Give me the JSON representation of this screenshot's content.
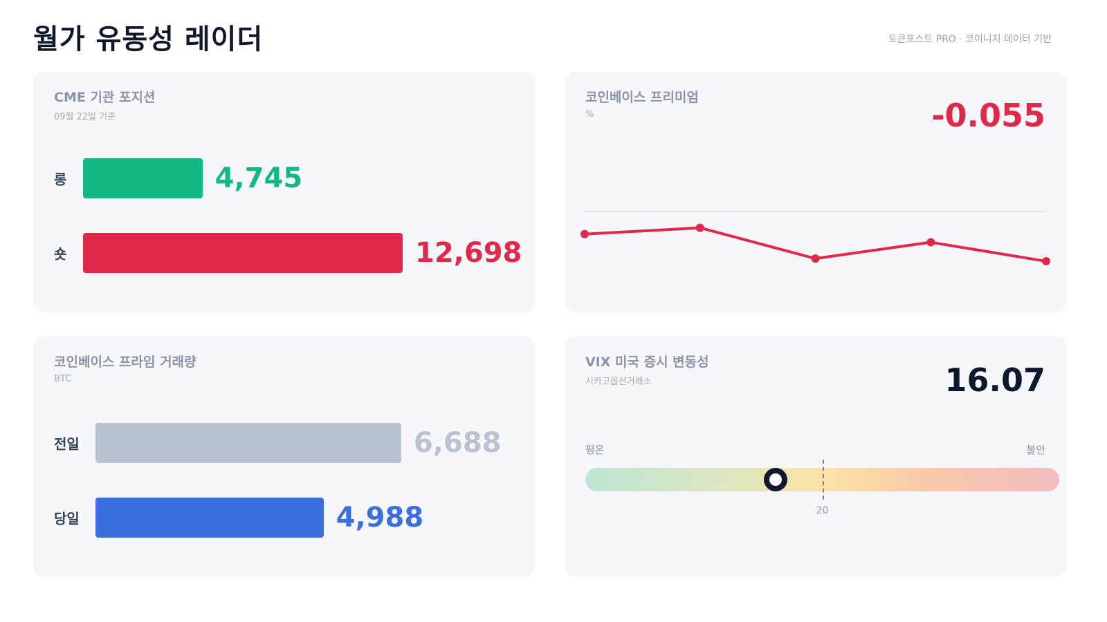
{
  "header": {
    "title": "월가 유동성 레이더",
    "source": "토큰포스트 PRO · 코이니지 데이터 기반"
  },
  "cme": {
    "title": "CME 기관 포지션",
    "subtitle": "09월 22일 기준",
    "long_label": "롱",
    "long_value": "4,745",
    "long_number": 4745,
    "short_label": "숏",
    "short_value": "12,698",
    "short_number": 12698,
    "long_color": "#13b886",
    "short_color": "#e0284b"
  },
  "premium": {
    "title": "코인베이스 프리미엄",
    "unit": "%",
    "value": "-0.055",
    "value_color": "#e0284b",
    "line_color": "#e0284b",
    "chart_data": {
      "type": "line",
      "title": "코인베이스 프리미엄",
      "ylabel": "%",
      "series": [
        {
          "values": [
            -0.025,
            -0.018,
            -0.052,
            -0.034,
            -0.055
          ]
        }
      ],
      "zero_line": true,
      "ylim": [
        -0.06,
        0.0
      ]
    }
  },
  "volume": {
    "title": "코인베이스 프라임 거래량",
    "unit": "BTC",
    "prev_label": "전일",
    "prev_value": "6,688",
    "prev_number": 6688,
    "today_label": "당일",
    "today_value": "4,988",
    "today_number": 4988,
    "prev_color": "#b8c2d1",
    "today_color": "#3b6fe0"
  },
  "vix": {
    "title": "VIX 미국 증시 변동성",
    "subtitle": "시카고옵션거래소",
    "value": "16.07",
    "value_number": 16.07,
    "low_label": "평온",
    "high_label": "불안",
    "threshold_label": "20",
    "threshold_number": 20,
    "scale_min": 0,
    "scale_max": 40
  }
}
